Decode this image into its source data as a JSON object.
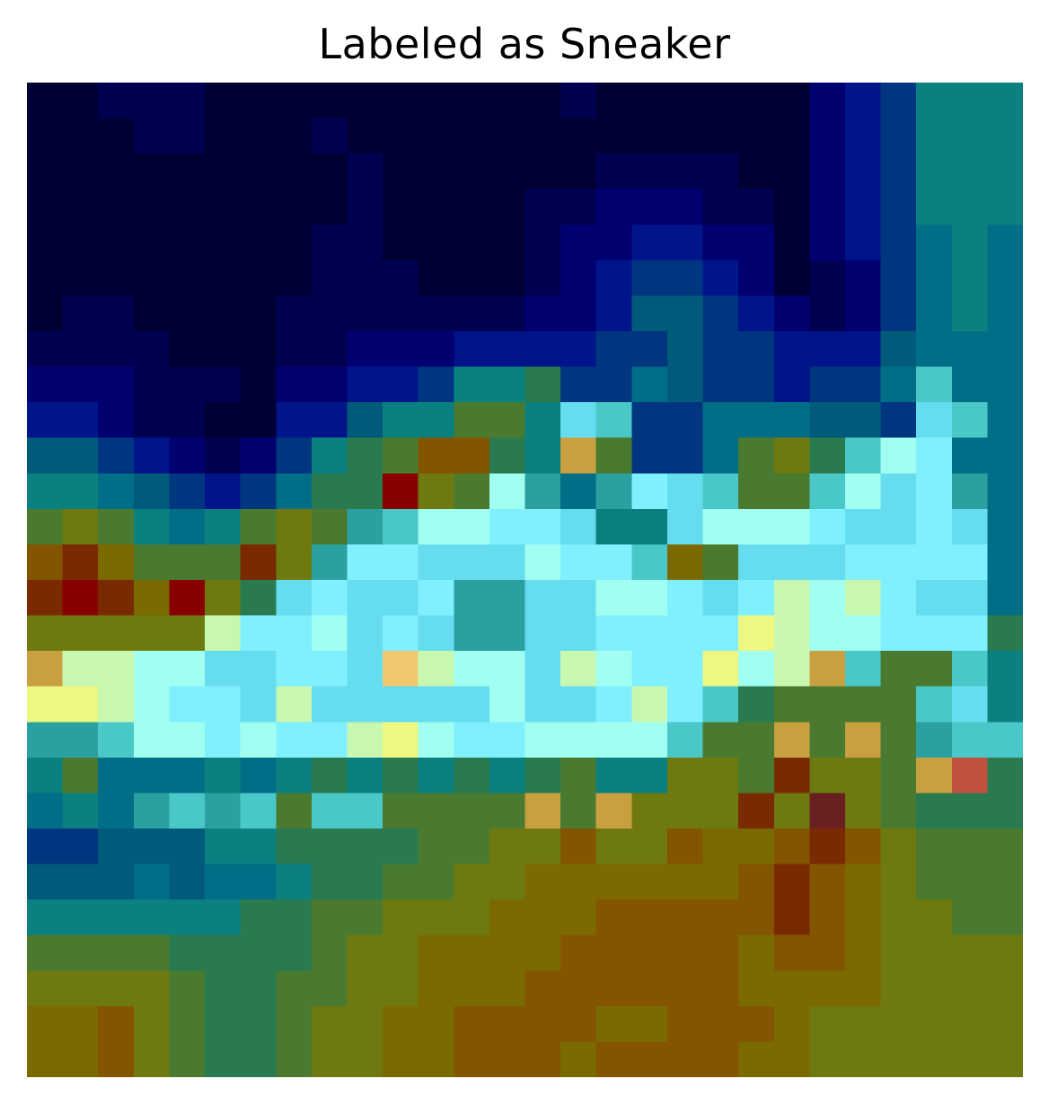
{
  "title": "Labeled as Sneaker",
  "chart_data": {
    "type": "heatmap",
    "title": "Labeled as Sneaker",
    "xlabel": "",
    "ylabel": "",
    "grid": false,
    "legend": "none",
    "rows": 28,
    "cols": 28,
    "palette": [
      "#000035",
      "#000050",
      "#000070",
      "#00158a",
      "#003580",
      "#005a7a",
      "#006e86",
      "#0a8080",
      "#2a7a50",
      "#4a7a30",
      "#6e7a10",
      "#7a6a00",
      "#845500",
      "#7a2a00",
      "#8a0000",
      "#2aa0a0",
      "#4ac8c8",
      "#66ddee",
      "#80f0ff",
      "#a0fff0",
      "#c8f8b0",
      "#eef880",
      "#f0c870",
      "#c8a040",
      "#c05040",
      "#6a2020"
    ],
    "values": [
      [
        0,
        0,
        1,
        1,
        1,
        0,
        0,
        0,
        0,
        0,
        0,
        0,
        0,
        0,
        0,
        1,
        0,
        0,
        0,
        0,
        0,
        0,
        2,
        3,
        4,
        7,
        7,
        7
      ],
      [
        0,
        0,
        0,
        1,
        1,
        0,
        0,
        0,
        1,
        0,
        0,
        0,
        0,
        0,
        0,
        0,
        0,
        0,
        0,
        0,
        0,
        0,
        2,
        3,
        4,
        7,
        7,
        7
      ],
      [
        0,
        0,
        0,
        0,
        0,
        0,
        0,
        0,
        0,
        1,
        0,
        0,
        0,
        0,
        0,
        0,
        1,
        1,
        1,
        1,
        0,
        0,
        2,
        3,
        4,
        7,
        7,
        7
      ],
      [
        0,
        0,
        0,
        0,
        0,
        0,
        0,
        0,
        0,
        1,
        0,
        0,
        0,
        0,
        1,
        1,
        2,
        2,
        2,
        1,
        1,
        0,
        2,
        3,
        4,
        7,
        7,
        7
      ],
      [
        0,
        0,
        0,
        0,
        0,
        0,
        0,
        0,
        1,
        1,
        0,
        0,
        0,
        0,
        1,
        2,
        2,
        3,
        3,
        2,
        2,
        0,
        2,
        3,
        4,
        6,
        7,
        6
      ],
      [
        0,
        0,
        0,
        0,
        0,
        0,
        0,
        0,
        1,
        1,
        1,
        0,
        0,
        0,
        1,
        2,
        3,
        4,
        4,
        3,
        2,
        0,
        1,
        2,
        4,
        6,
        7,
        6
      ],
      [
        0,
        1,
        1,
        0,
        0,
        0,
        0,
        1,
        1,
        1,
        1,
        1,
        1,
        1,
        2,
        2,
        3,
        5,
        5,
        4,
        3,
        2,
        1,
        2,
        4,
        6,
        7,
        6
      ],
      [
        1,
        1,
        1,
        1,
        0,
        0,
        0,
        1,
        1,
        2,
        2,
        2,
        3,
        3,
        3,
        3,
        4,
        4,
        5,
        4,
        4,
        3,
        3,
        3,
        5,
        6,
        6,
        6
      ],
      [
        2,
        2,
        2,
        1,
        1,
        1,
        0,
        2,
        2,
        3,
        3,
        4,
        7,
        7,
        8,
        4,
        4,
        6,
        5,
        4,
        4,
        3,
        4,
        4,
        6,
        16,
        6,
        6
      ],
      [
        3,
        3,
        2,
        1,
        1,
        0,
        0,
        3,
        3,
        5,
        7,
        7,
        9,
        9,
        7,
        17,
        16,
        4,
        4,
        6,
        6,
        6,
        5,
        5,
        4,
        17,
        16,
        6
      ],
      [
        5,
        5,
        4,
        3,
        2,
        1,
        2,
        4,
        7,
        8,
        9,
        12,
        12,
        8,
        7,
        23,
        9,
        4,
        4,
        6,
        9,
        10,
        8,
        16,
        19,
        18,
        6,
        6
      ],
      [
        7,
        7,
        6,
        5,
        4,
        3,
        4,
        6,
        8,
        8,
        14,
        10,
        9,
        19,
        15,
        6,
        15,
        18,
        17,
        16,
        9,
        9,
        16,
        19,
        17,
        18,
        15,
        6
      ],
      [
        9,
        10,
        9,
        7,
        6,
        7,
        9,
        10,
        9,
        15,
        16,
        19,
        19,
        18,
        18,
        17,
        7,
        7,
        17,
        19,
        19,
        19,
        18,
        17,
        17,
        18,
        17,
        6
      ],
      [
        12,
        13,
        11,
        9,
        9,
        9,
        13,
        10,
        15,
        18,
        18,
        17,
        17,
        17,
        19,
        18,
        18,
        16,
        11,
        9,
        17,
        17,
        17,
        18,
        18,
        18,
        18,
        6
      ],
      [
        13,
        14,
        13,
        11,
        14,
        10,
        8,
        17,
        18,
        17,
        17,
        18,
        15,
        15,
        17,
        17,
        19,
        19,
        18,
        17,
        18,
        20,
        19,
        20,
        18,
        17,
        17,
        6
      ],
      [
        10,
        10,
        10,
        10,
        10,
        20,
        18,
        18,
        19,
        17,
        18,
        17,
        15,
        15,
        17,
        17,
        18,
        18,
        18,
        18,
        21,
        20,
        19,
        19,
        18,
        18,
        18,
        8
      ],
      [
        23,
        20,
        20,
        19,
        19,
        17,
        17,
        18,
        18,
        17,
        22,
        20,
        19,
        19,
        17,
        20,
        19,
        18,
        18,
        21,
        19,
        20,
        23,
        16,
        9,
        9,
        16,
        7
      ],
      [
        21,
        21,
        20,
        19,
        18,
        18,
        17,
        20,
        17,
        17,
        17,
        17,
        17,
        19,
        17,
        17,
        18,
        20,
        18,
        16,
        8,
        9,
        9,
        9,
        9,
        16,
        17,
        7
      ],
      [
        15,
        15,
        16,
        19,
        19,
        18,
        19,
        18,
        18,
        20,
        21,
        19,
        18,
        18,
        19,
        19,
        19,
        19,
        16,
        9,
        9,
        23,
        9,
        23,
        9,
        15,
        16,
        16
      ],
      [
        7,
        9,
        6,
        6,
        6,
        7,
        6,
        7,
        8,
        7,
        8,
        7,
        8,
        7,
        8,
        9,
        7,
        7,
        10,
        10,
        9,
        13,
        10,
        10,
        9,
        23,
        24,
        8
      ],
      [
        6,
        7,
        6,
        15,
        16,
        15,
        16,
        9,
        16,
        16,
        9,
        9,
        9,
        9,
        23,
        9,
        23,
        10,
        10,
        10,
        13,
        10,
        25,
        10,
        9,
        8,
        8,
        8
      ],
      [
        4,
        4,
        5,
        5,
        5,
        7,
        7,
        8,
        8,
        8,
        8,
        9,
        9,
        10,
        10,
        12,
        10,
        10,
        12,
        11,
        11,
        12,
        13,
        12,
        10,
        9,
        9,
        9
      ],
      [
        5,
        5,
        5,
        6,
        5,
        6,
        6,
        7,
        8,
        8,
        9,
        9,
        10,
        10,
        11,
        11,
        11,
        11,
        11,
        11,
        12,
        13,
        12,
        11,
        10,
        9,
        9,
        9
      ],
      [
        7,
        7,
        7,
        7,
        7,
        7,
        8,
        8,
        9,
        9,
        10,
        10,
        10,
        11,
        11,
        11,
        12,
        12,
        12,
        12,
        12,
        13,
        12,
        11,
        10,
        10,
        9,
        9
      ],
      [
        9,
        9,
        9,
        9,
        8,
        8,
        8,
        8,
        9,
        10,
        10,
        11,
        11,
        11,
        11,
        12,
        12,
        12,
        12,
        12,
        11,
        12,
        12,
        11,
        10,
        10,
        10,
        10
      ],
      [
        10,
        10,
        10,
        10,
        9,
        8,
        8,
        9,
        9,
        10,
        10,
        11,
        11,
        11,
        12,
        12,
        12,
        12,
        12,
        12,
        11,
        11,
        11,
        11,
        10,
        10,
        10,
        10
      ],
      [
        11,
        11,
        12,
        10,
        9,
        8,
        8,
        9,
        10,
        10,
        11,
        11,
        12,
        12,
        12,
        12,
        11,
        11,
        12,
        12,
        12,
        11,
        10,
        10,
        10,
        10,
        10,
        10
      ],
      [
        11,
        11,
        12,
        10,
        9,
        8,
        8,
        9,
        10,
        10,
        11,
        11,
        12,
        12,
        12,
        11,
        12,
        12,
        12,
        12,
        11,
        11,
        10,
        10,
        10,
        10,
        10,
        10
      ]
    ]
  }
}
